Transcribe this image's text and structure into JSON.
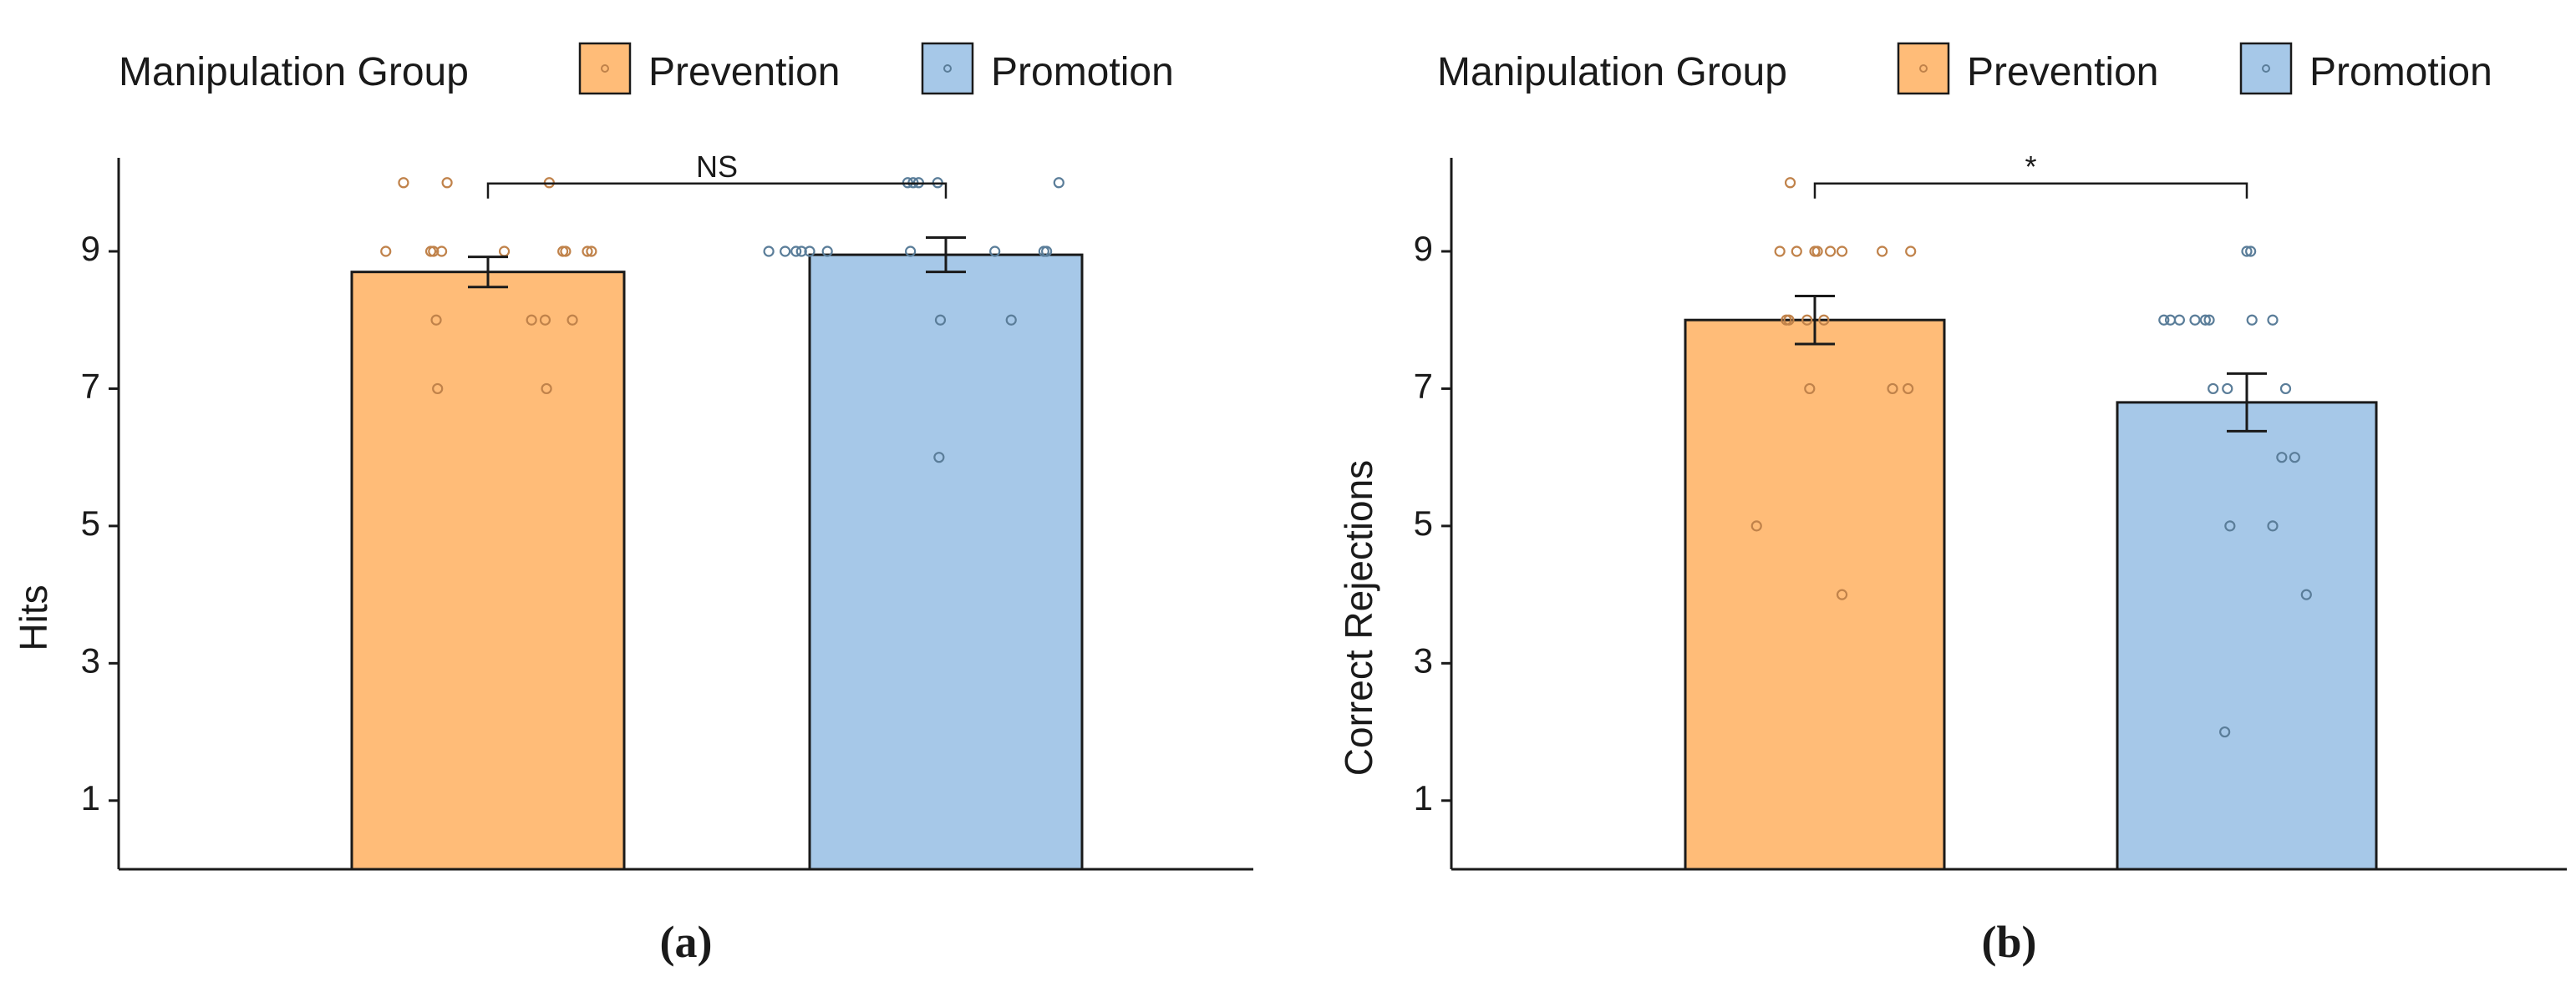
{
  "legend": {
    "title": "Manipulation Group",
    "items": [
      {
        "label": "Prevention",
        "color": "#FFBC78"
      },
      {
        "label": "Promotion",
        "color": "#A6C8E8"
      }
    ]
  },
  "colors": {
    "prevention_fill": "#FFBC78",
    "prevention_point": "#C0824A",
    "promotion_fill": "#A6C8E8",
    "promotion_point": "#5A7D99",
    "axis": "#1a1a1a"
  },
  "chart_data": [
    {
      "type": "bar",
      "panel_label": "(a)",
      "categories": [
        "Prevention",
        "Promotion"
      ],
      "values": [
        8.7,
        8.95
      ],
      "errors": [
        0.22,
        0.25
      ],
      "ylabel": "Hits",
      "xlabel": "",
      "ylim": [
        0,
        10.5
      ],
      "yticks": [
        1,
        3,
        5,
        7,
        9
      ],
      "grid": false,
      "legend_position": "top",
      "significance": {
        "label": "NS",
        "between": [
          "Prevention",
          "Promotion"
        ],
        "y": 10
      },
      "points": {
        "Prevention": [
          {
            "x": -0.75,
            "y": 9
          },
          {
            "x": -0.62,
            "y": 10
          },
          {
            "x": -0.42,
            "y": 9
          },
          {
            "x": -0.4,
            "y": 9
          },
          {
            "x": -0.34,
            "y": 9
          },
          {
            "x": -0.3,
            "y": 10
          },
          {
            "x": -0.38,
            "y": 8
          },
          {
            "x": -0.37,
            "y": 7
          },
          {
            "x": 0.12,
            "y": 9
          },
          {
            "x": 0.32,
            "y": 8
          },
          {
            "x": 0.42,
            "y": 8
          },
          {
            "x": 0.43,
            "y": 7
          },
          {
            "x": 0.45,
            "y": 10
          },
          {
            "x": 0.55,
            "y": 9
          },
          {
            "x": 0.57,
            "y": 9
          },
          {
            "x": 0.62,
            "y": 8
          },
          {
            "x": 0.73,
            "y": 9
          },
          {
            "x": 0.76,
            "y": 9
          }
        ],
        "Promotion": [
          {
            "x": -1.3,
            "y": 9
          },
          {
            "x": -1.18,
            "y": 9
          },
          {
            "x": -1.1,
            "y": 9
          },
          {
            "x": -1.06,
            "y": 9
          },
          {
            "x": -1.0,
            "y": 9
          },
          {
            "x": -0.87,
            "y": 9
          },
          {
            "x": -0.28,
            "y": 10
          },
          {
            "x": -0.26,
            "y": 9
          },
          {
            "x": -0.24,
            "y": 10
          },
          {
            "x": -0.2,
            "y": 10
          },
          {
            "x": -0.04,
            "y": 8
          },
          {
            "x": -0.05,
            "y": 6
          },
          {
            "x": -0.06,
            "y": 10
          },
          {
            "x": 0.36,
            "y": 9
          },
          {
            "x": 0.48,
            "y": 8
          },
          {
            "x": 0.72,
            "y": 9
          },
          {
            "x": 0.74,
            "y": 9
          },
          {
            "x": 0.83,
            "y": 10
          }
        ]
      }
    },
    {
      "type": "bar",
      "panel_label": "(b)",
      "categories": [
        "Prevention",
        "Promotion"
      ],
      "values": [
        8.0,
        6.8
      ],
      "errors": [
        0.35,
        0.42
      ],
      "ylabel": "Correct Rejections",
      "xlabel": "",
      "ylim": [
        0,
        10.5
      ],
      "yticks": [
        1,
        3,
        5,
        7,
        9
      ],
      "grid": false,
      "legend_position": "top",
      "significance": {
        "label": "*",
        "between": [
          "Prevention",
          "Promotion"
        ],
        "y": 10
      },
      "points": {
        "Prevention": [
          {
            "x": -0.45,
            "y": 5
          },
          {
            "x": -0.27,
            "y": 9
          },
          {
            "x": -0.22,
            "y": 8
          },
          {
            "x": -0.2,
            "y": 8
          },
          {
            "x": -0.14,
            "y": 9
          },
          {
            "x": -0.04,
            "y": 7
          },
          {
            "x": -0.19,
            "y": 10
          },
          {
            "x": -0.06,
            "y": 8
          },
          {
            "x": 0.0,
            "y": 9
          },
          {
            "x": 0.02,
            "y": 9
          },
          {
            "x": 0.12,
            "y": 9
          },
          {
            "x": 0.07,
            "y": 8
          },
          {
            "x": 0.21,
            "y": 4
          },
          {
            "x": 0.21,
            "y": 9
          },
          {
            "x": 0.52,
            "y": 9
          },
          {
            "x": 0.6,
            "y": 7
          },
          {
            "x": 0.72,
            "y": 7
          },
          {
            "x": 0.74,
            "y": 9
          }
        ],
        "Promotion": [
          {
            "x": -0.64,
            "y": 8
          },
          {
            "x": -0.59,
            "y": 8
          },
          {
            "x": -0.52,
            "y": 8
          },
          {
            "x": -0.4,
            "y": 8
          },
          {
            "x": -0.32,
            "y": 8
          },
          {
            "x": -0.26,
            "y": 7
          },
          {
            "x": -0.29,
            "y": 8
          },
          {
            "x": -0.17,
            "y": 2
          },
          {
            "x": -0.15,
            "y": 7
          },
          {
            "x": 0.0,
            "y": 9
          },
          {
            "x": -0.13,
            "y": 5
          },
          {
            "x": 0.03,
            "y": 9
          },
          {
            "x": 0.04,
            "y": 8
          },
          {
            "x": 0.2,
            "y": 8
          },
          {
            "x": 0.2,
            "y": 5
          },
          {
            "x": 0.27,
            "y": 6
          },
          {
            "x": 0.3,
            "y": 7
          },
          {
            "x": 0.37,
            "y": 6
          },
          {
            "x": 0.46,
            "y": 4
          }
        ]
      }
    }
  ]
}
